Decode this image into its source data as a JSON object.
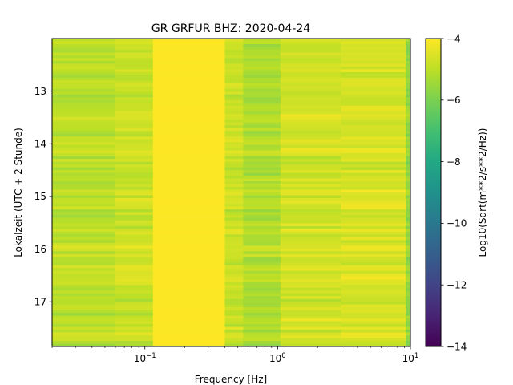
{
  "chart_data": {
    "type": "heatmap",
    "title": "GR GRFUR  BHZ: 2020-04-24",
    "xlabel": "Frequency [Hz]",
    "ylabel": "Lokalzeit (UTC + 2 Stunde)",
    "x_scale": "log",
    "xlim": [
      0.02,
      10
    ],
    "ylim": [
      17.85,
      12.0
    ],
    "x_ticks": [
      {
        "value": 0.1,
        "base": "10",
        "exp": "−1"
      },
      {
        "value": 1,
        "base": "10",
        "exp": "0"
      },
      {
        "value": 10,
        "base": "10",
        "exp": "1"
      }
    ],
    "y_ticks": [
      {
        "value": 13,
        "label": "13"
      },
      {
        "value": 14,
        "label": "14"
      },
      {
        "value": 15,
        "label": "15"
      },
      {
        "value": 16,
        "label": "16"
      },
      {
        "value": 17,
        "label": "17"
      }
    ],
    "colorbar": {
      "label": "Log10(Sqrt(m**2/s**2/Hz))",
      "range": [
        -14,
        -4
      ],
      "colormap": "viridis",
      "ticks": [
        {
          "value": -4,
          "label": "−4"
        },
        {
          "value": -6,
          "label": "−6"
        },
        {
          "value": -8,
          "label": "−8"
        },
        {
          "value": -10,
          "label": "−10"
        },
        {
          "value": -12,
          "label": "−12"
        },
        {
          "value": -14,
          "label": "−14"
        }
      ]
    },
    "frequency_bands": [
      {
        "f_from": 0.02,
        "f_to": 0.06,
        "level": -5.0
      },
      {
        "f_from": 0.06,
        "f_to": 0.115,
        "level": -4.8
      },
      {
        "f_from": 0.115,
        "f_to": 0.4,
        "level": -4.0
      },
      {
        "f_from": 0.4,
        "f_to": 0.55,
        "level": -4.8
      },
      {
        "f_from": 0.55,
        "f_to": 1.05,
        "level": -5.2
      },
      {
        "f_from": 1.05,
        "f_to": 3.0,
        "level": -4.7
      },
      {
        "f_from": 3.0,
        "f_to": 9.2,
        "level": -4.6
      },
      {
        "f_from": 9.2,
        "f_to": 10,
        "level": -5.6
      }
    ],
    "grid": false
  }
}
